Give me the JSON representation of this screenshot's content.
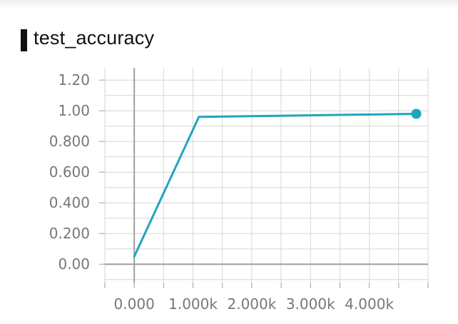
{
  "header": {
    "title": "test_accuracy"
  },
  "chart_data": {
    "type": "line",
    "title": "test_accuracy",
    "xlabel": "",
    "ylabel": "",
    "x_ticks": [
      0,
      1000,
      2000,
      3000,
      4000
    ],
    "x_tick_labels": [
      "0.000",
      "1.000k",
      "2.000k",
      "3.000k",
      "4.000k"
    ],
    "y_ticks": [
      0,
      0.2,
      0.4,
      0.6,
      0.8,
      1.0,
      1.2
    ],
    "y_tick_labels": [
      "0.00",
      "0.200",
      "0.400",
      "0.600",
      "0.800",
      "1.00",
      "1.20"
    ],
    "xlim": [
      -500,
      5000
    ],
    "ylim": [
      -0.12,
      1.28
    ],
    "grid": true,
    "series": [
      {
        "x": [
          0,
          1100,
          4800
        ],
        "y": [
          0.05,
          0.96,
          0.98
        ],
        "color": "#1fa6bd",
        "last_point_marker": true
      }
    ],
    "colors": {
      "line": "#1fa6bd",
      "grid": "#d6d6d6",
      "axis": "#9e9e9e",
      "tick_text": "#777777"
    }
  }
}
